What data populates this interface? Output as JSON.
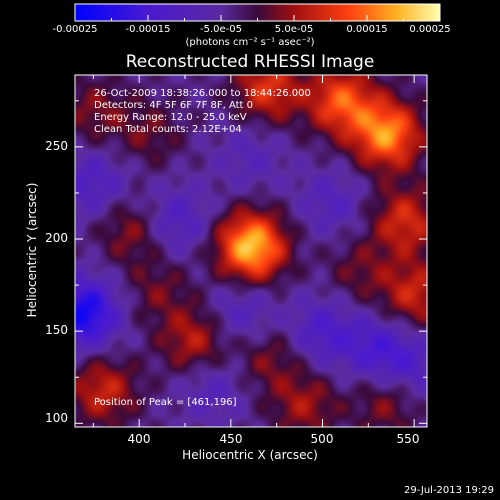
{
  "colorbar": {
    "ticks": [
      "-0.00025",
      "-0.00015",
      "-5.0e-05",
      "5.0e-05",
      "0.00015",
      "0.00025"
    ],
    "units": "(photons cm⁻² s⁻¹ asec⁻²)"
  },
  "title": "Reconstructed RHESSI Image",
  "annotations": {
    "time": "26-Oct-2009 18:38:26.000 to 18:44:26.000",
    "detectors": "Detectors: 4F 5F 6F 7F 8F, Att 0",
    "energy": "Energy Range: 12.0 - 25.0 keV",
    "clean": "Clean    Total counts: 2.12E+04",
    "peak": "Position of Peak = [461,196]"
  },
  "axes": {
    "x_label": "Heliocentric X (arcsec)",
    "y_label": "Heliocentric Y (arcsec)",
    "x_ticks": [
      "400",
      "450",
      "500",
      "550"
    ],
    "y_ticks": [
      "250",
      "200",
      "150",
      "100"
    ]
  },
  "timestamp": "29-Jul-2013 19:29",
  "chart_data": {
    "type": "heatmap",
    "title": "Reconstructed RHESSI Image",
    "xlabel": "Heliocentric X (arcsec)",
    "ylabel": "Heliocentric Y (arcsec)",
    "xlim": [
      365,
      557
    ],
    "ylim": [
      98,
      289
    ],
    "clim": [
      -0.00025,
      0.00025
    ],
    "peak": [
      461,
      196
    ],
    "blobs": [
      {
        "x": 461,
        "y": 196,
        "amp": 0.00025
      },
      {
        "x": 535,
        "y": 257,
        "amp": 0.00021
      },
      {
        "x": 510,
        "y": 275,
        "amp": 0.00017
      },
      {
        "x": 470,
        "y": 282,
        "amp": 0.00014
      },
      {
        "x": 545,
        "y": 210,
        "amp": 0.00013
      },
      {
        "x": 550,
        "y": 170,
        "amp": 0.00012
      },
      {
        "x": 430,
        "y": 145,
        "amp": 0.00011
      },
      {
        "x": 380,
        "y": 118,
        "amp": 0.00012
      },
      {
        "x": 395,
        "y": 205,
        "amp": 8e-05
      },
      {
        "x": 375,
        "y": 270,
        "amp": 7e-05
      },
      {
        "x": 405,
        "y": 258,
        "amp": 6e-05
      },
      {
        "x": 490,
        "y": 110,
        "amp": 9e-05
      },
      {
        "x": 470,
        "y": 135,
        "amp": 7e-05
      },
      {
        "x": 535,
        "y": 112,
        "amp": 8e-05
      },
      {
        "x": 520,
        "y": 183,
        "amp": 6e-05
      },
      {
        "x": 410,
        "y": 172,
        "amp": 6e-05
      },
      {
        "x": 370,
        "y": 160,
        "amp": -0.00018
      },
      {
        "x": 375,
        "y": 230,
        "amp": -8e-05
      },
      {
        "x": 420,
        "y": 210,
        "amp": -8e-05
      },
      {
        "x": 500,
        "y": 150,
        "amp": -9e-05
      },
      {
        "x": 530,
        "y": 140,
        "amp": -0.0001
      },
      {
        "x": 455,
        "y": 160,
        "amp": -7e-05
      },
      {
        "x": 440,
        "y": 120,
        "amp": -6e-05
      },
      {
        "x": 505,
        "y": 220,
        "amp": -6e-05
      },
      {
        "x": 460,
        "y": 245,
        "amp": -5e-05
      },
      {
        "x": 550,
        "y": 130,
        "amp": -7e-05
      }
    ]
  }
}
